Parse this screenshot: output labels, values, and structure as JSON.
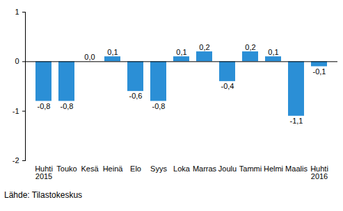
{
  "chart_data": {
    "type": "bar",
    "caption": "Lähde: Tilastokeskus",
    "categories": [
      "Huhti\n2015",
      "Touko",
      "Kesä",
      "Heinä",
      "Elo",
      "Syys",
      "Loka",
      "Marras",
      "Joulu",
      "Tammi",
      "Helmi",
      "Maalis",
      "Huhti\n2016"
    ],
    "values": [
      -0.8,
      -0.8,
      0.0,
      0.1,
      -0.6,
      -0.8,
      0.1,
      0.2,
      -0.4,
      0.2,
      0.1,
      -1.1,
      -0.1
    ],
    "value_labels": [
      "-0,8",
      "-0,8",
      "0,0",
      "0,1",
      "-0,6",
      "-0,8",
      "0,1",
      "0,2",
      "-0,4",
      "0,2",
      "0,1",
      "-1,1",
      "-0,1"
    ],
    "color": "#2b8fd6",
    "data_labels": true,
    "grid": false,
    "ylim": [
      -2,
      1
    ],
    "yticks": [
      -2,
      -1,
      0,
      1
    ]
  }
}
